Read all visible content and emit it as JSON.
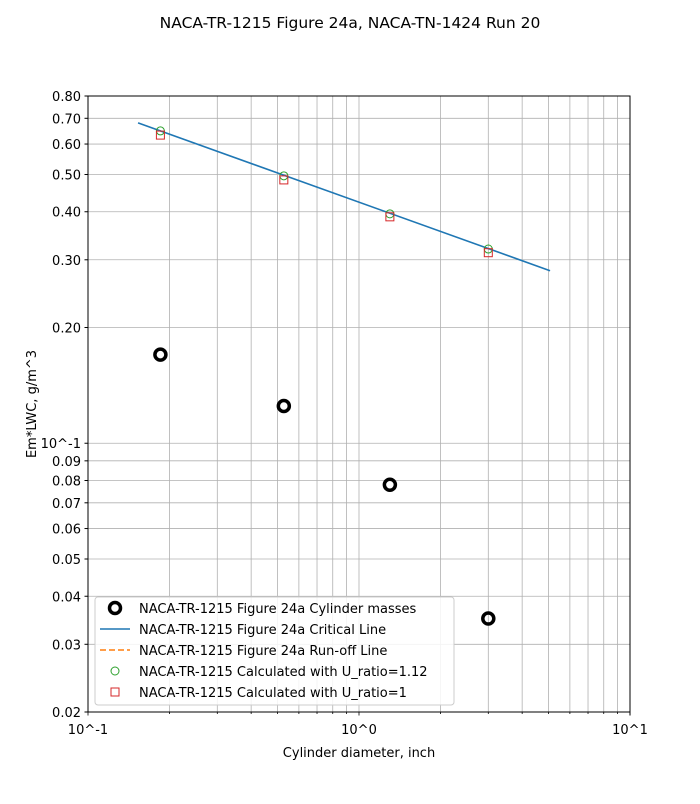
{
  "chart_data": {
    "type": "scatter",
    "title": "NACA-TR-1215 Figure 24a, NACA-TN-1424 Run 20",
    "xlabel": "Cylinder diameter, inch",
    "ylabel": "Em*LWC, g/m^3",
    "xscale": "log",
    "yscale": "log",
    "xlim": [
      0.1,
      10
    ],
    "ylim": [
      0.02,
      0.8
    ],
    "grid": true,
    "legend_placement": "lower-left",
    "xticks": [
      {
        "v": 0.1,
        "label": "10^-1"
      },
      {
        "v": 1,
        "label": "10^0"
      },
      {
        "v": 10,
        "label": "10^1"
      }
    ],
    "yticks": [
      {
        "v": 0.02,
        "label": "0.02"
      },
      {
        "v": 0.03,
        "label": "0.03"
      },
      {
        "v": 0.04,
        "label": "0.04"
      },
      {
        "v": 0.05,
        "label": "0.05"
      },
      {
        "v": 0.06,
        "label": "0.06"
      },
      {
        "v": 0.07,
        "label": "0.07"
      },
      {
        "v": 0.08,
        "label": "0.08"
      },
      {
        "v": 0.09,
        "label": "0.09"
      },
      {
        "v": 0.1,
        "label": "10^-1"
      },
      {
        "v": 0.2,
        "label": "0.20"
      },
      {
        "v": 0.3,
        "label": "0.30"
      },
      {
        "v": 0.4,
        "label": "0.40"
      },
      {
        "v": 0.5,
        "label": "0.50"
      },
      {
        "v": 0.6,
        "label": "0.60"
      },
      {
        "v": 0.7,
        "label": "0.70"
      },
      {
        "v": 0.8,
        "label": "0.80"
      }
    ],
    "series": [
      {
        "name": "NACA-TR-1215 Figure 24a Cylinder masses",
        "kind": "marker-thick-circle",
        "color": "#000000",
        "x": [
          0.185,
          0.528,
          1.3,
          3.0
        ],
        "y": [
          0.17,
          0.125,
          0.078,
          0.035
        ]
      },
      {
        "name": "NACA-TR-1215 Figure 24a Critical Line",
        "kind": "line",
        "color": "#1f77b4",
        "x": [
          0.153,
          5.07
        ],
        "y": [
          0.681,
          0.281
        ]
      },
      {
        "name": "NACA-TR-1215 Figure 24a Run-off Line",
        "kind": "dashed-line",
        "color": "#ff7f0e",
        "x": [],
        "y": []
      },
      {
        "name": "NACA-TR-1215 Calculated with U_ratio=1.12",
        "kind": "marker-circle",
        "color": "#2ca02c",
        "x": [
          0.185,
          0.528,
          1.3,
          3.0
        ],
        "y": [
          0.649,
          0.496,
          0.395,
          0.32
        ]
      },
      {
        "name": "NACA-TR-1215 Calculated with U_ratio=1",
        "kind": "marker-square",
        "color": "#d62728",
        "x": [
          0.185,
          0.528,
          1.3,
          3.0
        ],
        "y": [
          0.633,
          0.484,
          0.388,
          0.313
        ]
      }
    ]
  }
}
